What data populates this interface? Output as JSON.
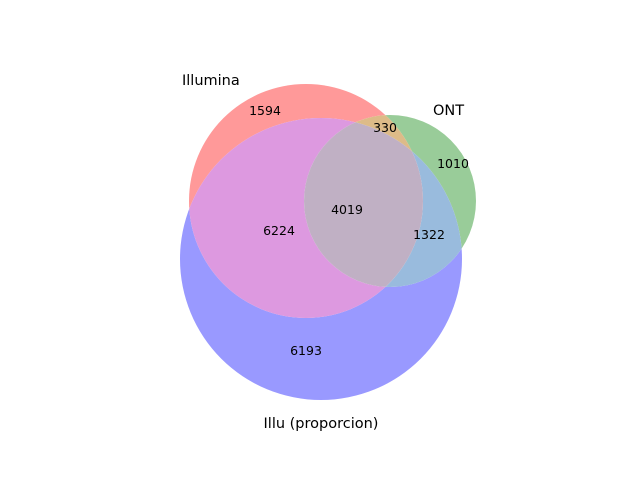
{
  "diagram": {
    "type": "venn3",
    "sets": [
      {
        "id": "A",
        "name": "Illumina",
        "color": "#ff9999"
      },
      {
        "id": "B",
        "name": "ONT",
        "color": "#99cc99"
      },
      {
        "id": "C",
        "name": "Illu (proporcion)",
        "color": "#9999ff"
      }
    ],
    "regions": {
      "A_only": 1594,
      "B_only": 1010,
      "C_only": 6193,
      "A_and_B_only": 330,
      "A_and_C_only": 6224,
      "B_and_C_only": 1322,
      "A_B_C": 4019
    }
  }
}
